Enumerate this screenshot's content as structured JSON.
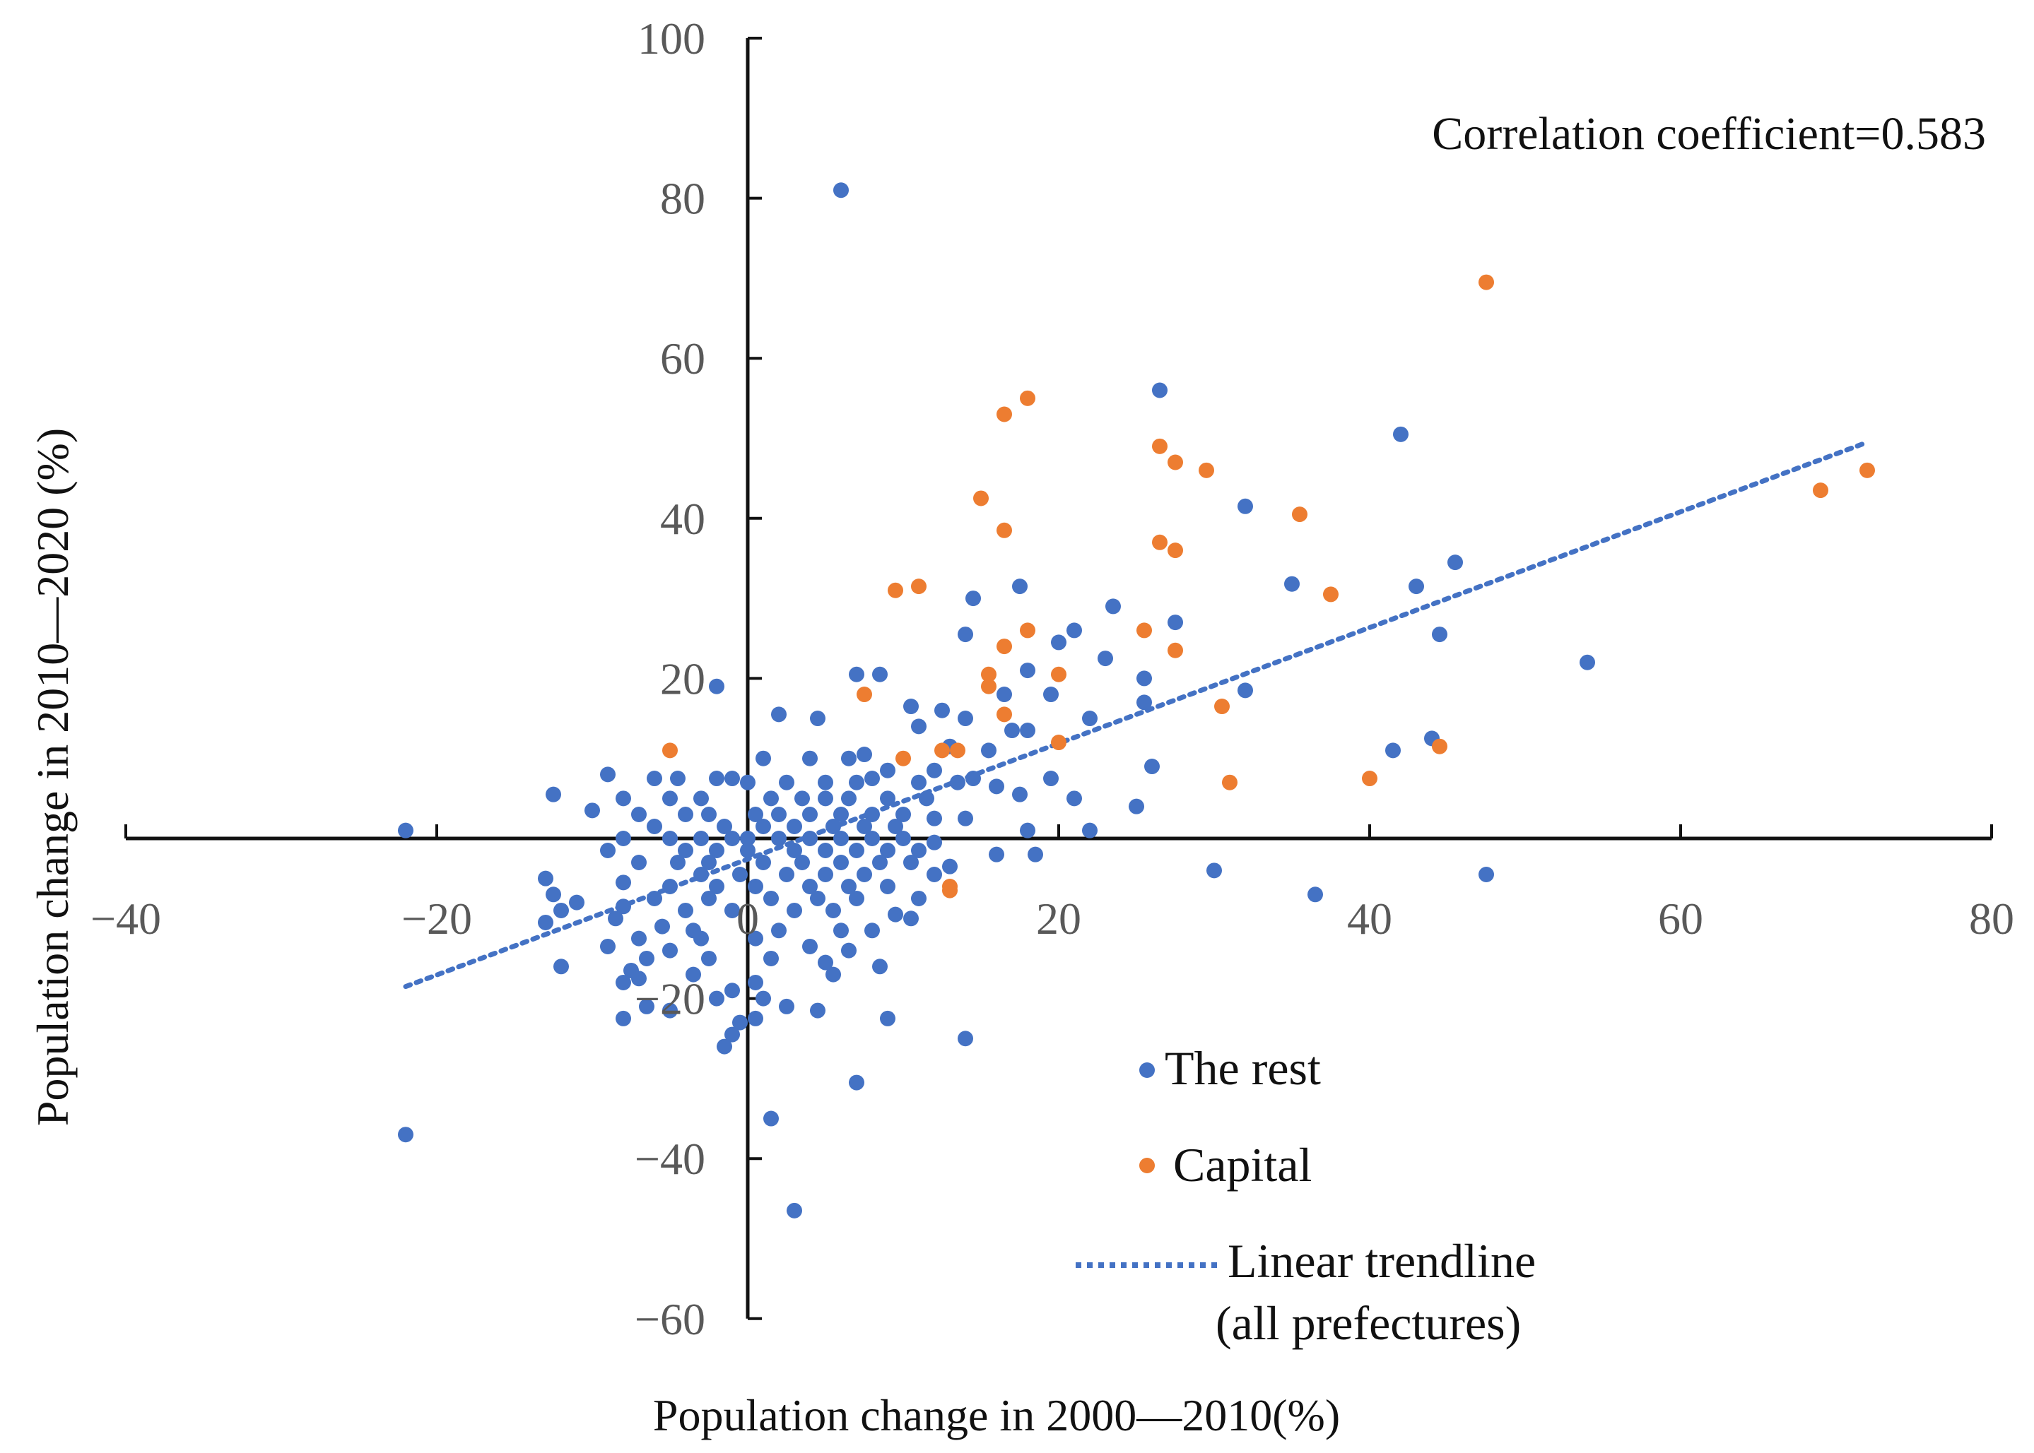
{
  "chart_data": {
    "type": "scatter",
    "title": "",
    "xlabel": "Population change in 2000—2010(%)",
    "ylabel": "Population change in 2010—2020 (%)",
    "xlim": [
      -40,
      80
    ],
    "ylim": [
      -60,
      100
    ],
    "x_ticks": [
      -40,
      -20,
      0,
      20,
      40,
      60,
      80
    ],
    "y_ticks": [
      -60,
      -40,
      -20,
      20,
      40,
      60,
      80,
      100
    ],
    "x_tick_labels": [
      "−40",
      "−20",
      "0",
      "20",
      "40",
      "60",
      "80"
    ],
    "y_tick_labels": [
      "−60",
      "−40",
      "−20",
      "20",
      "40",
      "60",
      "80",
      "100"
    ],
    "grid": false,
    "legend_position": "lower-center-right",
    "annotation": "Correlation coefficient=0.583",
    "colors": {
      "rest": "#4472C4",
      "capital": "#ED7D31",
      "trend": "#4472C4"
    },
    "legend": {
      "rest": "The rest",
      "capital": "Capital",
      "trend_line1": "Linear trendline",
      "trend_line2": "(all prefectures)"
    },
    "trendline": {
      "x": [
        -22,
        72
      ],
      "y": [
        -18.5,
        49.5
      ]
    },
    "series": [
      {
        "name": "The rest",
        "color": "#4472C4",
        "points": [
          [
            6,
            81
          ],
          [
            26.5,
            56
          ],
          [
            42,
            50.5
          ],
          [
            32,
            41.5
          ],
          [
            45.5,
            34.5
          ],
          [
            35,
            31.8
          ],
          [
            43,
            31.5
          ],
          [
            17.5,
            31.5
          ],
          [
            14.5,
            30
          ],
          [
            23.5,
            29
          ],
          [
            27.5,
            27
          ],
          [
            14,
            25.5
          ],
          [
            21,
            26
          ],
          [
            44.5,
            25.5
          ],
          [
            20,
            24.5
          ],
          [
            23,
            22.5
          ],
          [
            54,
            22
          ],
          [
            18,
            21
          ],
          [
            7,
            20.5
          ],
          [
            8.5,
            20.5
          ],
          [
            25.5,
            20
          ],
          [
            -2,
            19
          ],
          [
            32,
            18.5
          ],
          [
            16.5,
            18
          ],
          [
            19.5,
            18
          ],
          [
            25.5,
            17
          ],
          [
            10.5,
            16.5
          ],
          [
            12.5,
            16
          ],
          [
            2,
            15.5
          ],
          [
            4.5,
            15
          ],
          [
            22,
            15
          ],
          [
            14,
            15
          ],
          [
            11,
            14
          ],
          [
            17,
            13.5
          ],
          [
            18,
            13.5
          ],
          [
            44,
            12.5
          ],
          [
            13,
            11.5
          ],
          [
            15.5,
            11
          ],
          [
            41.5,
            11
          ],
          [
            4,
            10
          ],
          [
            7.5,
            10.5
          ],
          [
            6.5,
            10
          ],
          [
            1,
            10
          ],
          [
            26,
            9
          ],
          [
            9,
            8.5
          ],
          [
            12,
            8.5
          ],
          [
            14.5,
            7.5
          ],
          [
            19.5,
            7.5
          ],
          [
            -9,
            8
          ],
          [
            -6,
            7.5
          ],
          [
            -4.5,
            7.5
          ],
          [
            -2,
            7.5
          ],
          [
            -1,
            7.5
          ],
          [
            0,
            7
          ],
          [
            2.5,
            7
          ],
          [
            5,
            7
          ],
          [
            7,
            7
          ],
          [
            8,
            7.5
          ],
          [
            11,
            7
          ],
          [
            13.5,
            7
          ],
          [
            16,
            6.5
          ],
          [
            -12.5,
            5.5
          ],
          [
            -8,
            5
          ],
          [
            -5,
            5
          ],
          [
            -3,
            5
          ],
          [
            1.5,
            5
          ],
          [
            3.5,
            5
          ],
          [
            5,
            5
          ],
          [
            6.5,
            5
          ],
          [
            9,
            5
          ],
          [
            11.5,
            5
          ],
          [
            17.5,
            5.5
          ],
          [
            21,
            5
          ],
          [
            25,
            4
          ],
          [
            -10,
            3.5
          ],
          [
            -7,
            3
          ],
          [
            -4,
            3
          ],
          [
            -2.5,
            3
          ],
          [
            0.5,
            3
          ],
          [
            2,
            3
          ],
          [
            4,
            3
          ],
          [
            6,
            3
          ],
          [
            8,
            3
          ],
          [
            10,
            3
          ],
          [
            12,
            2.5
          ],
          [
            14,
            2.5
          ],
          [
            -6,
            1.5
          ],
          [
            -1.5,
            1.5
          ],
          [
            1,
            1.5
          ],
          [
            3,
            1.5
          ],
          [
            5.5,
            1.5
          ],
          [
            7.5,
            1.5
          ],
          [
            9.5,
            1.5
          ],
          [
            18,
            1
          ],
          [
            -22,
            1
          ],
          [
            22,
            1
          ],
          [
            -8,
            0
          ],
          [
            -5,
            0
          ],
          [
            -3,
            0
          ],
          [
            -1,
            0
          ],
          [
            0,
            0
          ],
          [
            2,
            0
          ],
          [
            4,
            0
          ],
          [
            6,
            0
          ],
          [
            8,
            0
          ],
          [
            10,
            0
          ],
          [
            12,
            -0.5
          ],
          [
            -9,
            -1.5
          ],
          [
            -4,
            -1.5
          ],
          [
            -2,
            -1.5
          ],
          [
            0,
            -1.5
          ],
          [
            3,
            -1.5
          ],
          [
            5,
            -1.5
          ],
          [
            7,
            -1.5
          ],
          [
            9,
            -1.5
          ],
          [
            11,
            -1.5
          ],
          [
            16,
            -2
          ],
          [
            18.5,
            -2
          ],
          [
            -7,
            -3
          ],
          [
            -4.5,
            -3
          ],
          [
            -2.5,
            -3
          ],
          [
            1,
            -3
          ],
          [
            3.5,
            -3
          ],
          [
            6,
            -3
          ],
          [
            8.5,
            -3
          ],
          [
            10.5,
            -3
          ],
          [
            13,
            -3.5
          ],
          [
            -3,
            -4.5
          ],
          [
            -0.5,
            -4.5
          ],
          [
            2.5,
            -4.5
          ],
          [
            5,
            -4.5
          ],
          [
            7.5,
            -4.5
          ],
          [
            12,
            -4.5
          ],
          [
            -13,
            -5
          ],
          [
            -8,
            -5.5
          ],
          [
            -5,
            -6
          ],
          [
            -2,
            -6
          ],
          [
            0.5,
            -6
          ],
          [
            4,
            -6
          ],
          [
            6.5,
            -6
          ],
          [
            9,
            -6
          ],
          [
            -12.5,
            -7
          ],
          [
            -6,
            -7.5
          ],
          [
            -2.5,
            -7.5
          ],
          [
            1.5,
            -7.5
          ],
          [
            4.5,
            -7.5
          ],
          [
            7,
            -7.5
          ],
          [
            11,
            -7.5
          ],
          [
            -11,
            -8
          ],
          [
            -12,
            -9
          ],
          [
            -8,
            -8.5
          ],
          [
            -4,
            -9
          ],
          [
            -1,
            -9
          ],
          [
            3,
            -9
          ],
          [
            5.5,
            -9
          ],
          [
            9.5,
            -9.5
          ],
          [
            -8.5,
            -10
          ],
          [
            10.5,
            -10
          ],
          [
            -13,
            -10.5
          ],
          [
            -5.5,
            -11
          ],
          [
            -3.5,
            -11.5
          ],
          [
            2,
            -11.5
          ],
          [
            6,
            -11.5
          ],
          [
            8,
            -11.5
          ],
          [
            -7,
            -12.5
          ],
          [
            -3,
            -12.5
          ],
          [
            0.5,
            -12.5
          ],
          [
            -9,
            -13.5
          ],
          [
            -5,
            -14
          ],
          [
            4,
            -13.5
          ],
          [
            6.5,
            -14
          ],
          [
            -6.5,
            -15
          ],
          [
            -2.5,
            -15
          ],
          [
            1.5,
            -15
          ],
          [
            5,
            -15.5
          ],
          [
            -7.5,
            -16.5
          ],
          [
            -12,
            -16
          ],
          [
            8.5,
            -16
          ],
          [
            -3.5,
            -17
          ],
          [
            5.5,
            -17
          ],
          [
            -7,
            -17.5
          ],
          [
            0.5,
            -18
          ],
          [
            -8,
            -18
          ],
          [
            -1,
            -19
          ],
          [
            -2,
            -20
          ],
          [
            1,
            -20
          ],
          [
            -6.5,
            -21
          ],
          [
            -5,
            -21.5
          ],
          [
            2.5,
            -21
          ],
          [
            4.5,
            -21.5
          ],
          [
            -8,
            -22.5
          ],
          [
            9,
            -22.5
          ],
          [
            -0.5,
            -23
          ],
          [
            0.5,
            -22.5
          ],
          [
            -1,
            -24.5
          ],
          [
            -1.5,
            -26
          ],
          [
            14,
            -25
          ],
          [
            7,
            -30.5
          ],
          [
            1.5,
            -35
          ],
          [
            -22,
            -37
          ],
          [
            3,
            -46.5
          ],
          [
            30,
            -4
          ],
          [
            36.5,
            -7
          ],
          [
            47.5,
            -4.5
          ]
        ]
      },
      {
        "name": "Capital",
        "color": "#ED7D31",
        "points": [
          [
            47.5,
            69.5
          ],
          [
            18,
            55
          ],
          [
            16.5,
            53
          ],
          [
            26.5,
            49
          ],
          [
            27.5,
            47
          ],
          [
            29.5,
            46
          ],
          [
            72,
            46
          ],
          [
            69,
            43.5
          ],
          [
            15,
            42.5
          ],
          [
            35.5,
            40.5
          ],
          [
            16.5,
            38.5
          ],
          [
            26.5,
            37
          ],
          [
            27.5,
            36
          ],
          [
            9.5,
            31
          ],
          [
            11,
            31.5
          ],
          [
            37.5,
            30.5
          ],
          [
            18,
            26
          ],
          [
            25.5,
            26
          ],
          [
            16.5,
            24
          ],
          [
            27.5,
            23.5
          ],
          [
            15.5,
            20.5
          ],
          [
            20,
            20.5
          ],
          [
            15.5,
            19
          ],
          [
            7.5,
            18
          ],
          [
            30.5,
            16.5
          ],
          [
            16.5,
            15.5
          ],
          [
            -5,
            11
          ],
          [
            12.5,
            11
          ],
          [
            13.5,
            11
          ],
          [
            10,
            10
          ],
          [
            20,
            12
          ],
          [
            44.5,
            11.5
          ],
          [
            40,
            7.5
          ],
          [
            31,
            7
          ],
          [
            13,
            -6
          ],
          [
            13,
            -6.5
          ]
        ]
      }
    ]
  }
}
